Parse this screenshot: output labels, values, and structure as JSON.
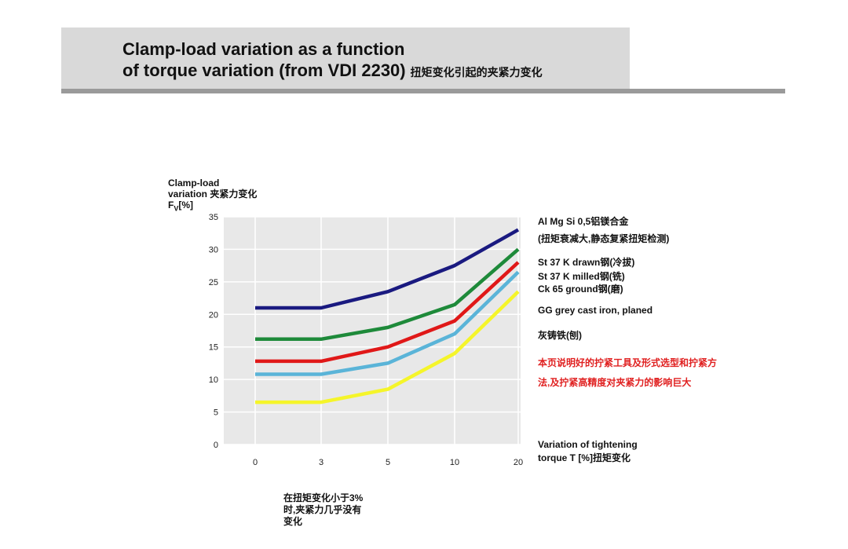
{
  "header": {
    "title_line1": "Clamp-load variation as a function",
    "title_line2": "of torque variation (from VDI 2230)",
    "title_cn": "扭矩变化引起的夹紧力变化"
  },
  "y_axis_label": {
    "line1": "Clamp-load",
    "line2": "variation 夹紧力变化",
    "symbol": "F",
    "sub": "V",
    "unit": "[%]"
  },
  "legend": {
    "l1": "Al Mg Si 0,5铝镁合金",
    "l2": "(扭矩衰减大,静态复紧扭矩检测)",
    "l3": "St 37 K drawn钢(冷拔)",
    "l4": "St 37 K milled钢(铣)",
    "l5": "Ck 65 ground钢(磨)",
    "l6": "GG grey cast iron, planed",
    "l7": "灰铸铁(刨)"
  },
  "red_note": "本页说明好的拧紧工具及形式选型和拧紧方法,及拧紧高精度对夹紧力的影响巨大",
  "x_axis_label": {
    "line1": "Variation of tightening",
    "line2": "torque T [%]扭矩变化"
  },
  "bottom_note": "在扭矩变化小于3%时,夹紧力几乎没有变化",
  "chart_data": {
    "type": "line",
    "categories": [
      "0",
      "3",
      "5",
      "10",
      "20"
    ],
    "ylim": [
      0,
      35
    ],
    "yticks": [
      0,
      5,
      10,
      15,
      20,
      25,
      30,
      35
    ],
    "grid": true,
    "series": [
      {
        "values": [
          21,
          21,
          23.5,
          27.5,
          33
        ],
        "color": "#1a1a80"
      },
      {
        "values": [
          16.2,
          16.2,
          18,
          21.5,
          30
        ],
        "color": "#1e8a3a"
      },
      {
        "values": [
          12.8,
          12.8,
          15,
          19,
          28
        ],
        "color": "#e01818"
      },
      {
        "values": [
          10.8,
          10.8,
          12.5,
          17,
          26.5
        ],
        "color": "#5ab4d8"
      },
      {
        "values": [
          6.5,
          6.5,
          8.5,
          14,
          23.5
        ],
        "color": "#f5f52a"
      }
    ]
  }
}
